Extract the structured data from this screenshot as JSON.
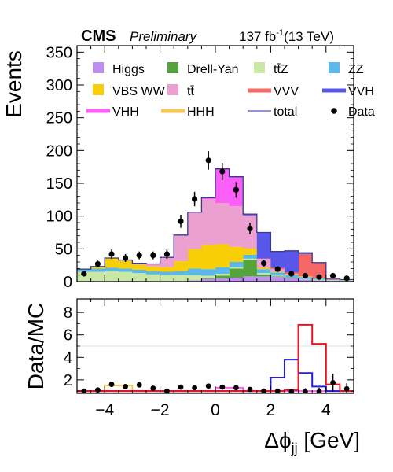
{
  "header": {
    "experiment": "CMS",
    "status": "Preliminary",
    "lumi": "137 fb",
    "lumi_exp": "-1",
    "energy": "(13 TeV)"
  },
  "chart_data": [
    {
      "type": "area",
      "stacked": true,
      "ylabel": "Events",
      "ylim": [
        0,
        360
      ],
      "yticks": [
        0,
        50,
        100,
        150,
        200,
        250,
        300,
        350
      ],
      "xlim": [
        -5,
        5
      ],
      "bin_edges": [
        -5,
        -4.5,
        -4,
        -3.5,
        -3,
        -2.5,
        -2,
        -1.5,
        -1,
        -0.5,
        0,
        0.5,
        1,
        1.5,
        2,
        2.5,
        3,
        3.5,
        4,
        4.5,
        5
      ],
      "legend_placement": "top",
      "series": [
        {
          "name": "Higgs",
          "color": "#bf8cf2",
          "values": [
            1,
            1,
            1,
            1,
            1,
            1,
            1,
            1,
            2,
            4,
            5,
            6,
            8,
            8,
            7,
            5,
            3,
            2,
            1,
            1
          ]
        },
        {
          "name": "Drell-Yan",
          "color": "#54a33b",
          "values": [
            0,
            0,
            0,
            0,
            0,
            0,
            0,
            0,
            0,
            1,
            4,
            14,
            25,
            3,
            1,
            0,
            0,
            0,
            0,
            0
          ]
        },
        {
          "name": "tt̄Z",
          "color": "#c8e8a4",
          "values": [
            14,
            14,
            15,
            14,
            12,
            10,
            9,
            9,
            8,
            4,
            3,
            2,
            2,
            2,
            1,
            1,
            1,
            1,
            1,
            1
          ]
        },
        {
          "name": "ZZ",
          "color": "#5ab8ea",
          "values": [
            3,
            5,
            5,
            5,
            5,
            5,
            5,
            6,
            10,
            10,
            10,
            8,
            6,
            6,
            5,
            4,
            3,
            2,
            1,
            1
          ]
        },
        {
          "name": "VBS WW",
          "color": "#f8ce07",
          "values": [
            1,
            3,
            15,
            12,
            8,
            7,
            7,
            15,
            30,
            37,
            35,
            23,
            10,
            2,
            1,
            1,
            1,
            0,
            0,
            0
          ]
        },
        {
          "name": "tt̄",
          "color": "#eba0cf",
          "values": [
            0,
            0,
            0,
            1,
            2,
            4,
            15,
            40,
            56,
            70,
            63,
            62,
            50,
            14,
            4,
            1,
            0,
            0,
            0,
            0
          ]
        },
        {
          "name": "VVV",
          "color": "#f66767",
          "values": [
            0,
            0,
            0,
            0,
            0,
            0,
            0,
            0,
            0,
            0,
            0,
            0,
            0,
            0,
            2,
            2,
            34,
            23,
            2,
            0
          ]
        },
        {
          "name": "VVH",
          "color": "#5857ea",
          "values": [
            0,
            0,
            0,
            0,
            0,
            0,
            0,
            0,
            0,
            0,
            0,
            0,
            1,
            40,
            25,
            33,
            2,
            1,
            0,
            0
          ]
        },
        {
          "name": "VHH",
          "color": "#fb5ff8",
          "values": [
            0,
            0,
            0,
            0,
            0,
            0,
            0,
            0,
            0,
            2,
            52,
            45,
            1,
            0,
            0,
            0,
            0,
            0,
            0,
            0
          ]
        },
        {
          "name": "HHH",
          "color": "#fcc55a",
          "values": [
            0,
            0,
            0,
            0,
            0,
            0,
            0,
            0,
            0,
            0,
            0,
            0,
            0,
            0,
            0,
            0,
            0,
            0,
            0,
            0
          ]
        }
      ],
      "total": {
        "name": "total",
        "color": "#6e6ec8"
      },
      "data_points": {
        "name": "Data",
        "x": [
          -4.75,
          -4.25,
          -3.75,
          -3.25,
          -2.75,
          -2.25,
          -1.75,
          -1.25,
          -0.75,
          -0.25,
          0.25,
          0.75,
          1.25,
          1.75,
          2.25,
          2.75,
          3.25,
          3.75,
          4.25,
          4.75
        ],
        "y": [
          12,
          27,
          42,
          36,
          40,
          40,
          42,
          92,
          126,
          185,
          168,
          140,
          81,
          28,
          19,
          12,
          9,
          7,
          9,
          5
        ],
        "err": [
          4,
          5,
          7,
          6,
          6,
          6,
          7,
          10,
          11,
          14,
          13,
          12,
          9,
          5,
          4,
          4,
          3,
          3,
          3,
          2
        ]
      }
    },
    {
      "type": "line",
      "ylabel": "Data/MC",
      "ylim": [
        0.8,
        9.2
      ],
      "yticks": [
        2,
        4,
        6,
        8
      ],
      "reference_line": 5,
      "xlabel": "Δϕ",
      "xlabel_sub": "jj",
      "xlabel_unit": " [GeV]",
      "xlim": [
        -5,
        5
      ],
      "xticks": [
        -4,
        -2,
        0,
        2,
        4
      ],
      "xtick_labels": [
        "−4",
        "−2",
        "0",
        "2",
        "4"
      ],
      "bin_edges": [
        -5,
        -4.5,
        -4,
        -3.5,
        -3,
        -2.5,
        -2,
        -1.5,
        -1,
        -0.5,
        0,
        0.5,
        1,
        1.5,
        2,
        2.5,
        3,
        3.5,
        4,
        4.5,
        5
      ],
      "series": [
        {
          "name": "HHH",
          "color": "#fcc55a",
          "values": [
            1,
            1,
            1.5,
            1.5,
            1,
            1,
            1,
            1,
            1,
            1,
            1,
            1,
            1,
            1,
            1,
            1,
            1,
            1,
            1,
            1
          ]
        },
        {
          "name": "VHH",
          "color": "#fb5ff8",
          "values": [
            1,
            1,
            1,
            1,
            1,
            1,
            1,
            1,
            1,
            1,
            1.3,
            1.3,
            1,
            1,
            1,
            1,
            1,
            1,
            1,
            1
          ]
        },
        {
          "name": "VVH",
          "color": "#1f1fe0",
          "values": [
            1,
            1,
            1,
            1,
            1,
            1,
            1,
            1,
            1,
            1,
            1,
            1,
            1,
            1,
            2.2,
            3.8,
            2.6,
            1.4,
            1,
            1
          ]
        },
        {
          "name": "VVV",
          "color": "#e8141e",
          "values": [
            1,
            1,
            1,
            1,
            1,
            1,
            1,
            1,
            1,
            1,
            1,
            1,
            1,
            1,
            1,
            1.1,
            6.9,
            5.2,
            1.6,
            1
          ]
        }
      ],
      "data_points": {
        "name": "Data",
        "x": [
          -4.75,
          -4.25,
          -3.75,
          -3.25,
          -2.75,
          -2.25,
          -1.75,
          -1.25,
          -0.75,
          -0.25,
          0.25,
          0.75,
          1.25,
          1.75,
          2.25,
          2.75,
          3.25,
          3.75,
          4.25,
          4.75
        ],
        "y": [
          1.0,
          1.1,
          1.6,
          1.4,
          1.55,
          1.25,
          1.0,
          1.35,
          1.3,
          1.45,
          1.35,
          1.3,
          1.15,
          1.0,
          1.0,
          0.95,
          0.95,
          0.95,
          1.75,
          1.2
        ],
        "err": [
          0,
          0.2,
          0.2,
          0.2,
          0.15,
          0.15,
          0.15,
          0.15,
          0.12,
          0.12,
          0.12,
          0.12,
          0.12,
          0.15,
          0.2,
          0.25,
          0.3,
          0.35,
          0.8,
          0.5
        ]
      }
    }
  ]
}
